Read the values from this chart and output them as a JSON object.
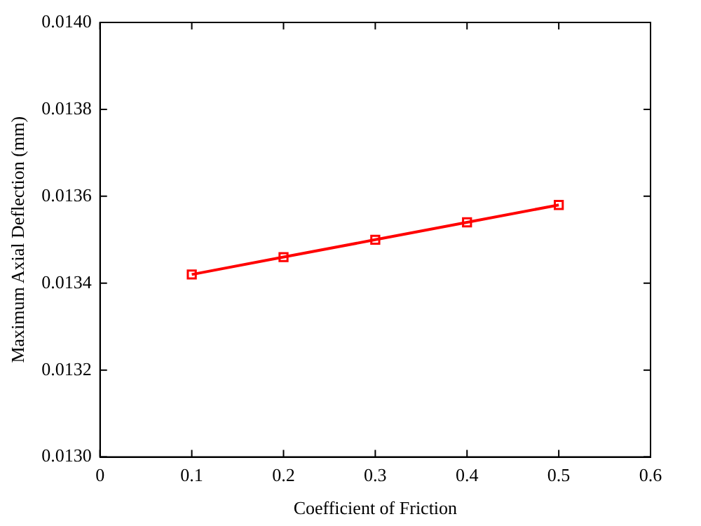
{
  "chart_data": {
    "type": "line",
    "xlabel": "Coefficient of Friction",
    "ylabel": "Maximum Axial Deflection (mm)",
    "x": [
      0.1,
      0.2,
      0.3,
      0.4,
      0.5
    ],
    "series": [
      {
        "color": "#ff0000",
        "values": [
          0.01342,
          0.01346,
          0.0135,
          0.01354,
          0.01358
        ]
      }
    ],
    "xlim": [
      0,
      0.6
    ],
    "xticks": [
      0,
      0.1,
      0.2,
      0.3,
      0.4,
      0.5,
      0.6
    ],
    "ylim": [
      0.013,
      0.014
    ],
    "yticks": [
      {
        "value": 0.013,
        "label": "0.0130"
      },
      {
        "value": 0.0132,
        "label": "0.0132"
      },
      {
        "value": 0.0134,
        "label": "0.0134"
      },
      {
        "value": 0.0136,
        "label": "0.0136"
      },
      {
        "value": 0.0138,
        "label": "0.0138"
      },
      {
        "value": 0.014,
        "label": "0.0140"
      }
    ],
    "grid": false,
    "legend": false,
    "marker": "square",
    "line_style": "solid"
  }
}
